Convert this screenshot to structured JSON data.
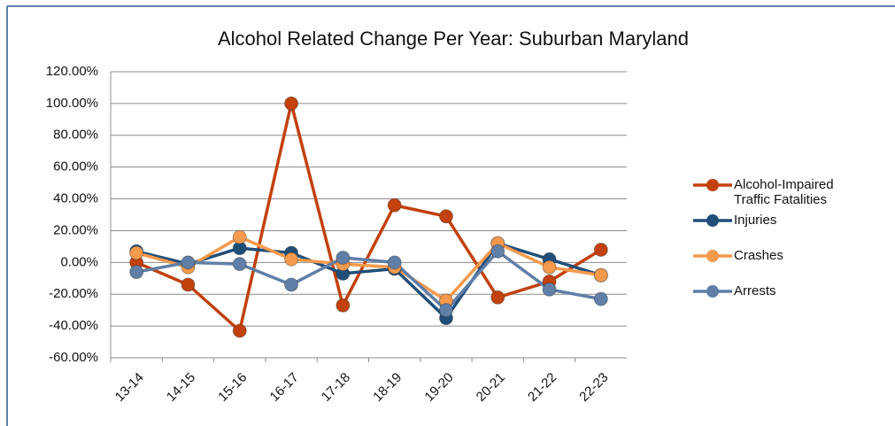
{
  "chart_data": {
    "type": "line",
    "title": "Alcohol Related Change Per Year: Suburban Maryland",
    "categories": [
      "13-14",
      "14-15",
      "15-16",
      "16-17",
      "17-18",
      "18-19",
      "19-20",
      "20-21",
      "21-22",
      "22-23"
    ],
    "series": [
      {
        "name": "Alcohol-Impaired Traffic Fatalities",
        "color": "#c2410c",
        "values": [
          0,
          -14,
          -43,
          100,
          -27,
          36,
          29,
          -22,
          -12,
          8
        ]
      },
      {
        "name": "Injuries",
        "color": "#1f4e79",
        "values": [
          7,
          -1,
          9,
          6,
          -7,
          -4,
          -35,
          12,
          2,
          -8
        ]
      },
      {
        "name": "Crashes",
        "color": "#f59a4c",
        "values": [
          6,
          -3,
          16,
          2,
          -1,
          -3,
          -24,
          12,
          -3,
          -8
        ]
      },
      {
        "name": "Arrests",
        "color": "#5f7fa6",
        "values": [
          -6,
          0,
          -1,
          -14,
          3,
          0,
          -30,
          7,
          -17,
          -23
        ]
      }
    ],
    "ylim": [
      -60,
      120
    ],
    "yticks": [
      {
        "value": -60,
        "label": "-60.00%"
      },
      {
        "value": -40,
        "label": "-40.00%"
      },
      {
        "value": -20,
        "label": "-20.00%"
      },
      {
        "value": 0,
        "label": "0.00%"
      },
      {
        "value": 20,
        "label": "20.00%"
      },
      {
        "value": 40,
        "label": "40.00%"
      },
      {
        "value": 60,
        "label": "60.00%"
      },
      {
        "value": 80,
        "label": "80.00%"
      },
      {
        "value": 100,
        "label": "100.00%"
      },
      {
        "value": 120,
        "label": "120.00%"
      }
    ],
    "grid": true,
    "legend": "right"
  }
}
